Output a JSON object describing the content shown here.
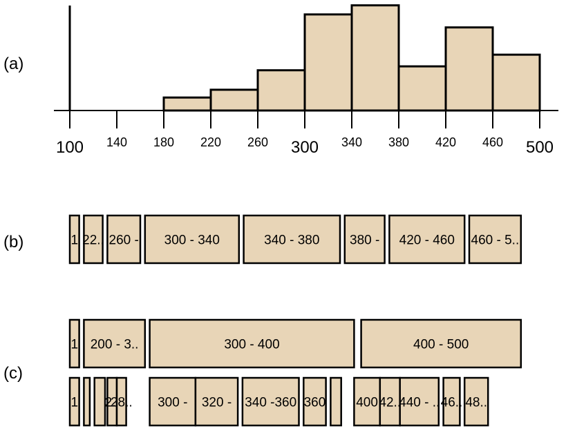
{
  "row_labels": {
    "a": "(a)",
    "b": "(b)",
    "c": "(c)"
  },
  "colors": {
    "fill": "#e8d5b7",
    "stroke": "#000000"
  },
  "chart_data": {
    "type": "bar",
    "bin_edges": [
      180,
      220,
      260,
      300,
      340,
      380,
      420,
      460,
      500
    ],
    "values": [
      1.0,
      1.6,
      3.1,
      7.4,
      8.1,
      3.4,
      6.4,
      4.3
    ],
    "xlim": [
      100,
      500
    ],
    "ticks": [
      {
        "value": 100,
        "label": "100",
        "major": true
      },
      {
        "value": 140,
        "label": "140",
        "major": false
      },
      {
        "value": 180,
        "label": "180",
        "major": false
      },
      {
        "value": 220,
        "label": "220",
        "major": false
      },
      {
        "value": 260,
        "label": "260",
        "major": false
      },
      {
        "value": 300,
        "label": "300",
        "major": true
      },
      {
        "value": 340,
        "label": "340",
        "major": false
      },
      {
        "value": 380,
        "label": "380",
        "major": false
      },
      {
        "value": 420,
        "label": "420",
        "major": false
      },
      {
        "value": 460,
        "label": "460",
        "major": false
      },
      {
        "value": 500,
        "label": "500",
        "major": true
      }
    ],
    "row_b": [
      {
        "label": "1",
        "start": 100,
        "end": 108
      },
      {
        "label": "22..",
        "start": 112,
        "end": 128
      },
      {
        "label": "260 -",
        "start": 132,
        "end": 160
      },
      {
        "label": "300 - 340",
        "start": 164,
        "end": 244
      },
      {
        "label": "340 - 380",
        "start": 248,
        "end": 330
      },
      {
        "label": "380 -",
        "start": 334,
        "end": 368
      },
      {
        "label": "420 - 460",
        "start": 372,
        "end": 436
      },
      {
        "label": "460 - 5..",
        "start": 440,
        "end": 484
      }
    ],
    "row_c_top": [
      {
        "label": "1",
        "start": 100,
        "end": 108
      },
      {
        "label": "200 - 3..",
        "start": 112,
        "end": 164
      },
      {
        "label": "300 - 400",
        "start": 168,
        "end": 342
      },
      {
        "label": "400 - 500",
        "start": 348,
        "end": 484
      }
    ],
    "row_c_bottom": [
      {
        "label": "1",
        "start": 100,
        "end": 108
      },
      {
        "label": "",
        "start": 112,
        "end": 117
      },
      {
        "label": "",
        "start": 121,
        "end": 130
      },
      {
        "label": "2..",
        "start": 132,
        "end": 140
      },
      {
        "label": "28..",
        "start": 140,
        "end": 148
      },
      {
        "label": "300 -",
        "start": 168,
        "end": 207
      },
      {
        "label": "320 -",
        "start": 207,
        "end": 243
      },
      {
        "label": "340 -360",
        "start": 247,
        "end": 295
      },
      {
        "label": "360",
        "start": 299,
        "end": 318
      },
      {
        "label": "",
        "start": 322,
        "end": 331
      },
      {
        "label": "400",
        "start": 342,
        "end": 364
      },
      {
        "label": "42..",
        "start": 364,
        "end": 381
      },
      {
        "label": "440 - ..",
        "start": 381,
        "end": 414
      },
      {
        "label": "46..",
        "start": 418,
        "end": 432
      },
      {
        "label": "48..",
        "start": 436,
        "end": 456
      }
    ]
  }
}
